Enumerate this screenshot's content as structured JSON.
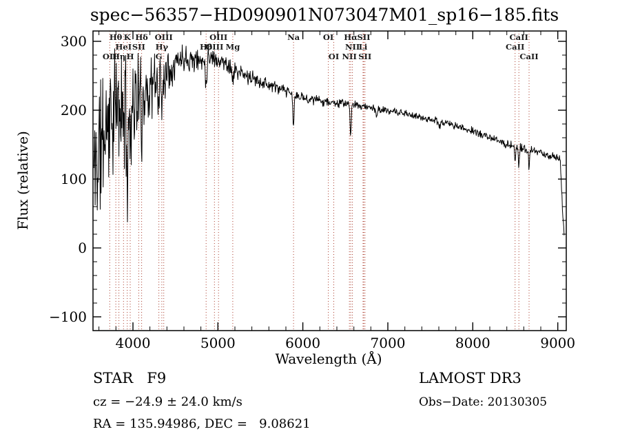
{
  "chart_data": {
    "type": "line",
    "title": "spec−56357−HD090901N073047M01_sp16−185.fits",
    "xlabel": "Wavelength (Å)",
    "ylabel": "Flux (relative)",
    "xlim": [
      3530,
      9100
    ],
    "ylim": [
      -120,
      315
    ],
    "xticks": [
      4000,
      5000,
      6000,
      7000,
      8000,
      9000
    ],
    "yticks": [
      -100,
      0,
      100,
      200,
      300
    ],
    "x_minor_step": 200,
    "y_minor_step": 20,
    "grid": false,
    "legend": "none",
    "line_color": "#000000",
    "marker_color": "#aa3a2a",
    "spectrum": {
      "lambda_start": 3540,
      "lambda_end": 9075,
      "step": 5,
      "seed": 11,
      "noise_scale": 1.25,
      "continuum": [
        [
          3540,
          110
        ],
        [
          3620,
          150
        ],
        [
          3700,
          185
        ],
        [
          3800,
          200
        ],
        [
          3900,
          198
        ],
        [
          4000,
          212
        ],
        [
          4100,
          222
        ],
        [
          4200,
          233
        ],
        [
          4300,
          242
        ],
        [
          4400,
          258
        ],
        [
          4500,
          270
        ],
        [
          4600,
          278
        ],
        [
          4700,
          274
        ],
        [
          4800,
          271
        ],
        [
          4900,
          279
        ],
        [
          5000,
          273
        ],
        [
          5100,
          268
        ],
        [
          5200,
          258
        ],
        [
          5300,
          251
        ],
        [
          5400,
          246
        ],
        [
          5500,
          242
        ],
        [
          5600,
          237
        ],
        [
          5700,
          232
        ],
        [
          5800,
          227
        ],
        [
          5900,
          222
        ],
        [
          6000,
          218
        ],
        [
          6100,
          216
        ],
        [
          6200,
          214
        ],
        [
          6300,
          212
        ],
        [
          6400,
          210
        ],
        [
          6500,
          210
        ],
        [
          6600,
          208
        ],
        [
          6700,
          206
        ],
        [
          6800,
          204
        ],
        [
          6900,
          201
        ],
        [
          7000,
          199
        ],
        [
          7100,
          197
        ],
        [
          7200,
          195
        ],
        [
          7300,
          192
        ],
        [
          7400,
          189
        ],
        [
          7500,
          187
        ],
        [
          7600,
          184
        ],
        [
          7700,
          181
        ],
        [
          7800,
          177
        ],
        [
          7900,
          173
        ],
        [
          8000,
          170
        ],
        [
          8100,
          165
        ],
        [
          8200,
          160
        ],
        [
          8300,
          155
        ],
        [
          8400,
          151
        ],
        [
          8500,
          148
        ],
        [
          8600,
          144
        ],
        [
          8700,
          141
        ],
        [
          8800,
          138
        ],
        [
          8900,
          134
        ],
        [
          9000,
          131
        ],
        [
          9030,
          125
        ],
        [
          9055,
          60
        ],
        [
          9075,
          20
        ]
      ],
      "noise": [
        [
          3540,
          115
        ],
        [
          3620,
          105
        ],
        [
          3700,
          95
        ],
        [
          3800,
          85
        ],
        [
          3900,
          78
        ],
        [
          4000,
          68
        ],
        [
          4100,
          58
        ],
        [
          4200,
          50
        ],
        [
          4300,
          44
        ],
        [
          4400,
          32
        ],
        [
          4500,
          24
        ],
        [
          4600,
          19
        ],
        [
          4700,
          17
        ],
        [
          4800,
          15
        ],
        [
          5000,
          13
        ],
        [
          5200,
          12
        ],
        [
          5400,
          10
        ],
        [
          5600,
          9
        ],
        [
          5800,
          8
        ],
        [
          6000,
          7
        ],
        [
          6300,
          6
        ],
        [
          6700,
          5
        ],
        [
          7200,
          5
        ],
        [
          7700,
          5
        ],
        [
          8200,
          5
        ],
        [
          8700,
          6
        ],
        [
          9075,
          7
        ]
      ],
      "absorption_features": [
        [
          3933,
          8,
          85
        ],
        [
          3968,
          7,
          55
        ],
        [
          4102,
          7,
          50
        ],
        [
          4305,
          6,
          28
        ],
        [
          4340,
          7,
          45
        ],
        [
          4861,
          7,
          42
        ],
        [
          5175,
          9,
          18
        ],
        [
          5890,
          7,
          48
        ],
        [
          6563,
          7,
          46
        ],
        [
          6868,
          8,
          12
        ],
        [
          7605,
          10,
          10
        ],
        [
          8498,
          6,
          24
        ],
        [
          8542,
          6,
          30
        ],
        [
          8662,
          6,
          27
        ]
      ]
    },
    "spectral_lines": [
      {
        "label": "OII",
        "wavelength": 3727,
        "row": 3
      },
      {
        "label": "Hθ",
        "wavelength": 3798,
        "row": 1
      },
      {
        "label": "Hη",
        "wavelength": 3835,
        "row": 3
      },
      {
        "label": "HeI",
        "wavelength": 3889,
        "row": 2
      },
      {
        "label": "K",
        "wavelength": 3933,
        "row": 1
      },
      {
        "label": "H",
        "wavelength": 3968,
        "row": 3
      },
      {
        "label": "SII",
        "wavelength": 4068,
        "row": 2
      },
      {
        "label": "Hδ",
        "wavelength": 4102,
        "row": 1
      },
      {
        "label": "G",
        "wavelength": 4305,
        "row": 3
      },
      {
        "label": "Hγ",
        "wavelength": 4340,
        "row": 2
      },
      {
        "label": "OIII",
        "wavelength": 4363,
        "row": 1
      },
      {
        "label": "Hβ",
        "wavelength": 4861,
        "row": 2
      },
      {
        "label": "OIII",
        "wavelength": 4959,
        "row": 2
      },
      {
        "label": "OIII",
        "wavelength": 5007,
        "row": 1
      },
      {
        "label": "Mg",
        "wavelength": 5175,
        "row": 2
      },
      {
        "label": "Na",
        "wavelength": 5890,
        "row": 1
      },
      {
        "label": "OI",
        "wavelength": 6300,
        "row": 1
      },
      {
        "label": "OI",
        "wavelength": 6364,
        "row": 3
      },
      {
        "label": "NII",
        "wavelength": 6548,
        "row": 3
      },
      {
        "label": "Hα",
        "wavelength": 6563,
        "row": 1
      },
      {
        "label": "NII",
        "wavelength": 6583,
        "row": 2
      },
      {
        "label": "Li",
        "wavelength": 6708,
        "row": 2
      },
      {
        "label": "SII",
        "wavelength": 6716,
        "row": 1
      },
      {
        "label": "SII",
        "wavelength": 6731,
        "row": 3
      },
      {
        "label": "CaII",
        "wavelength": 8498,
        "row": 2
      },
      {
        "label": "CaII",
        "wavelength": 8542,
        "row": 1
      },
      {
        "label": "CaII",
        "wavelength": 8662,
        "row": 3
      }
    ]
  },
  "annotations": {
    "class_line": "STAR   F9",
    "survey": "LAMOST DR3",
    "cz": "cz = −24.9 ± 24.0 km/s",
    "obs_date": "Obs−Date: 20130305",
    "coords": "RA = 135.94986, DEC =   9.08621"
  }
}
